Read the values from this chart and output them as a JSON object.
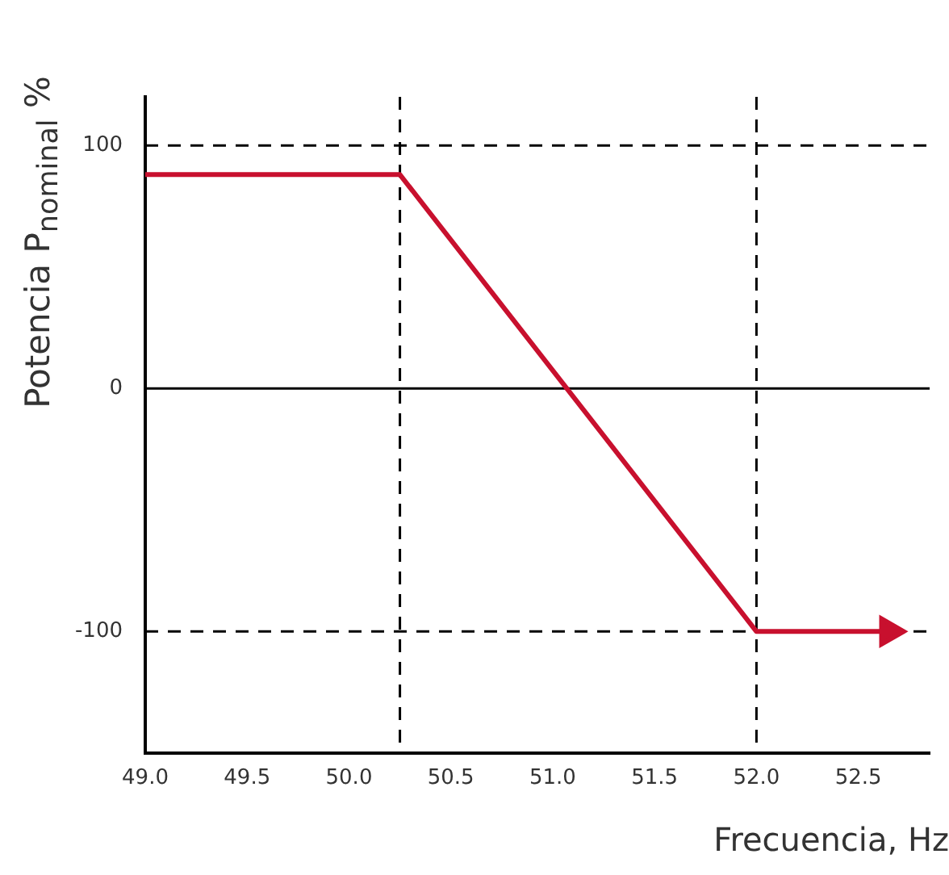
{
  "chart_data": {
    "type": "line",
    "xlabel": "Frecuencia, Hz",
    "ylabel": "Potencia P$_{nominal}$ %",
    "x": [
      49.0,
      50.25,
      52.0,
      52.65
    ],
    "series": [
      {
        "color": "#c8102e",
        "values": [
          88,
          88,
          -100,
          -100
        ]
      }
    ],
    "xlim": [
      49.0,
      52.85
    ],
    "xticks": [
      {
        "value": 49.0,
        "label": "49.0"
      },
      {
        "value": 49.5,
        "label": "49.5"
      },
      {
        "value": 50.0,
        "label": "50.0"
      },
      {
        "value": 50.5,
        "label": "50.5"
      },
      {
        "value": 51.0,
        "label": "51.0"
      },
      {
        "value": 51.5,
        "label": "51.5"
      },
      {
        "value": 52.0,
        "label": "52.0"
      },
      {
        "value": 52.5,
        "label": "52.5"
      }
    ],
    "ylim": [
      -150,
      120
    ],
    "yticks": [
      100,
      0,
      -100
    ],
    "ref_lines": [
      {
        "axis": "y",
        "value": 100,
        "line_style": "dashed",
        "color": "#000000"
      },
      {
        "axis": "y",
        "value": 0,
        "line_style": "solid",
        "color": "#000000"
      },
      {
        "axis": "y",
        "value": -100,
        "line_style": "dashed",
        "color": "#000000"
      },
      {
        "axis": "x",
        "value": 50.25,
        "line_style": "dashed",
        "color": "#000000"
      },
      {
        "axis": "x",
        "value": 52.0,
        "line_style": "dashed",
        "color": "#000000"
      }
    ],
    "grid": false,
    "legend": false,
    "marker": "none",
    "line_style": "solid"
  }
}
